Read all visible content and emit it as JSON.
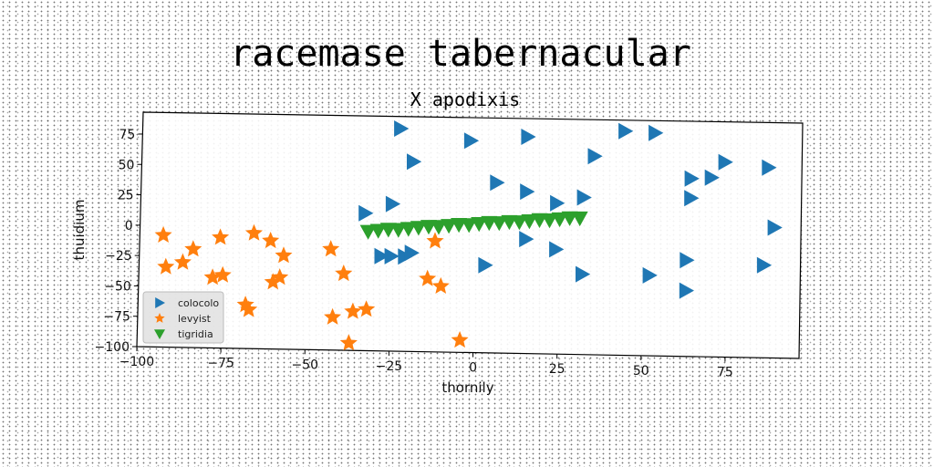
{
  "chart_data": {
    "type": "scatter",
    "title": "racemase tabernacular",
    "subtitle": "X apodixis",
    "xlabel": "thornily",
    "ylabel": "thuidium",
    "xlim": [
      -100,
      97
    ],
    "ylim": [
      -100,
      93
    ],
    "xticks": [
      -100,
      -75,
      -50,
      -25,
      0,
      25,
      50,
      75
    ],
    "yticks": [
      75,
      50,
      25,
      0,
      -25,
      -50,
      -75,
      -100
    ],
    "grid": false,
    "legend_position": "bottom-left",
    "series": [
      {
        "name": "colocolo",
        "marker": "triangle-right",
        "color": "#1f77b4",
        "points": [
          [
            -23,
            83
          ],
          [
            -19,
            56
          ],
          [
            -2,
            74
          ],
          [
            15,
            78
          ],
          [
            44,
            84
          ],
          [
            53,
            83
          ],
          [
            35,
            63
          ],
          [
            -33,
            13
          ],
          [
            -25,
            21
          ],
          [
            6,
            40
          ],
          [
            15,
            33
          ],
          [
            24,
            24
          ],
          [
            32,
            29
          ],
          [
            64,
            46
          ],
          [
            70,
            47
          ],
          [
            74,
            60
          ],
          [
            87,
            56
          ],
          [
            64,
            30
          ],
          [
            -28,
            -22
          ],
          [
            -25,
            -22
          ],
          [
            -21,
            -22
          ],
          [
            -19,
            -19
          ],
          [
            15,
            -6
          ],
          [
            24,
            -14
          ],
          [
            63,
            -21
          ],
          [
            86,
            -24
          ],
          [
            3,
            -28
          ],
          [
            32,
            -34
          ],
          [
            52,
            -34
          ],
          [
            63,
            -46
          ],
          [
            89,
            7
          ]
        ]
      },
      {
        "name": "levyist",
        "marker": "star",
        "color": "#ff7f0e",
        "points": [
          [
            -93,
            -8
          ],
          [
            -84,
            -19
          ],
          [
            -76,
            -9
          ],
          [
            -66,
            -5
          ],
          [
            -61,
            -11
          ],
          [
            -57,
            -23
          ],
          [
            -92,
            -34
          ],
          [
            -87,
            -30
          ],
          [
            -78,
            -42
          ],
          [
            -75,
            -40
          ],
          [
            -60,
            -45
          ],
          [
            -58,
            -41
          ],
          [
            -68,
            -64
          ],
          [
            -67,
            -68
          ],
          [
            -43,
            -17
          ],
          [
            -39,
            -37
          ],
          [
            -14,
            -40
          ],
          [
            -10,
            -46
          ],
          [
            -12,
            -9
          ],
          [
            -42,
            -73
          ],
          [
            -36,
            -68
          ],
          [
            -32,
            -66
          ],
          [
            -37,
            -94
          ],
          [
            -4,
            -90
          ]
        ]
      },
      {
        "name": "tigridia",
        "marker": "triangle-down",
        "color": "#2ca02c",
        "points": [
          [
            -32,
            -2
          ],
          [
            -29,
            -1
          ],
          [
            -26,
            0
          ],
          [
            -23,
            0
          ],
          [
            -20,
            1
          ],
          [
            -17,
            2
          ],
          [
            -14,
            3
          ],
          [
            -11,
            3
          ],
          [
            -8,
            4
          ],
          [
            -5,
            5
          ],
          [
            -2,
            5
          ],
          [
            1,
            6
          ],
          [
            4,
            7
          ],
          [
            7,
            7
          ],
          [
            10,
            8
          ],
          [
            13,
            8
          ],
          [
            16,
            9
          ],
          [
            19,
            10
          ],
          [
            22,
            10
          ],
          [
            25,
            11
          ],
          [
            28,
            12
          ],
          [
            31,
            12
          ]
        ]
      }
    ]
  }
}
